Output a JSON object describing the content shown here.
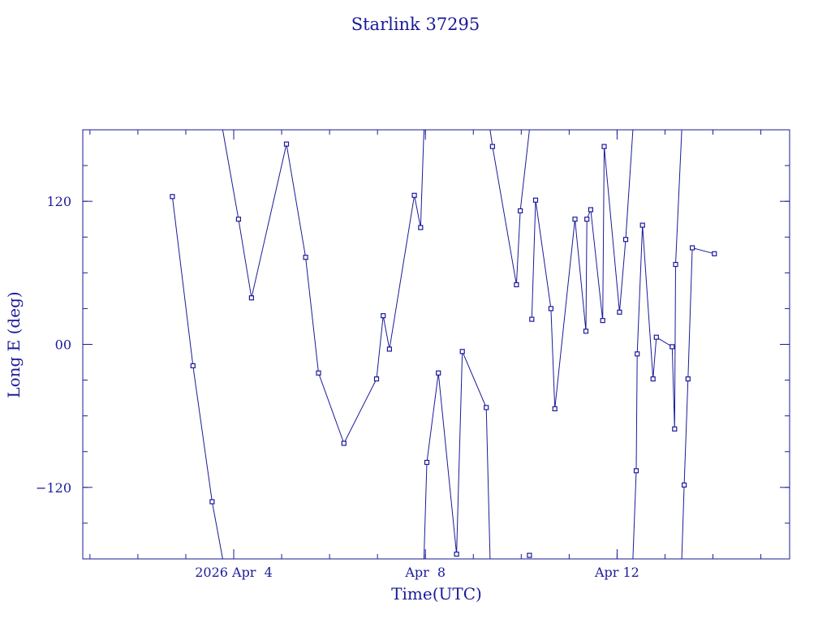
{
  "chart_data": {
    "type": "line",
    "title": "Starlink 37295",
    "xlabel": "Time(UTC)",
    "ylabel": "Long E (deg)",
    "x_unit": "days",
    "xlim": [
      0.0,
      14.75
    ],
    "ylim": [
      -180,
      180
    ],
    "x_ticks": [
      {
        "value": 3.15,
        "label": "2026 Apr  4"
      },
      {
        "value": 7.15,
        "label": "Apr  8"
      },
      {
        "value": 11.15,
        "label": "Apr 12"
      }
    ],
    "y_ticks": [
      {
        "value": 120,
        "label": "120"
      },
      {
        "value": 0,
        "label": "00"
      },
      {
        "value": -120,
        "label": "−120"
      }
    ],
    "grid": false,
    "color": "#1a1a99",
    "series": [
      {
        "points": [
          [
            1.87,
            124
          ],
          [
            2.3,
            -18
          ],
          [
            2.7,
            -132
          ],
          [
            2.92,
            -180
          ]
        ]
      },
      {
        "points": [
          [
            2.92,
            180
          ],
          [
            3.25,
            105
          ],
          [
            3.52,
            39
          ],
          [
            4.25,
            168
          ],
          [
            4.65,
            73
          ],
          [
            4.92,
            -24
          ],
          [
            5.45,
            -83
          ],
          [
            6.13,
            -29
          ],
          [
            6.27,
            24
          ],
          [
            6.4,
            -4
          ],
          [
            6.92,
            125
          ],
          [
            7.05,
            98
          ],
          [
            7.12,
            180
          ]
        ]
      },
      {
        "points": [
          [
            7.12,
            -180
          ],
          [
            7.18,
            -99
          ],
          [
            7.42,
            -24
          ],
          [
            7.8,
            -176
          ],
          [
            7.92,
            -6
          ],
          [
            8.42,
            -53
          ],
          [
            8.5,
            -180
          ]
        ]
      },
      {
        "points": [
          [
            8.5,
            180
          ],
          [
            8.55,
            166
          ],
          [
            9.05,
            50
          ],
          [
            9.13,
            112
          ],
          [
            9.32,
            180
          ]
        ]
      },
      {
        "points": [
          [
            9.32,
            -177
          ]
        ]
      },
      {
        "points": [
          [
            9.37,
            21
          ],
          [
            9.45,
            121
          ],
          [
            9.77,
            30
          ],
          [
            9.85,
            -54
          ],
          [
            10.27,
            105
          ],
          [
            10.5,
            11
          ],
          [
            10.52,
            105
          ],
          [
            10.6,
            113
          ],
          [
            10.85,
            20
          ],
          [
            10.88,
            166
          ],
          [
            11.2,
            27
          ],
          [
            11.33,
            88
          ],
          [
            11.48,
            180
          ]
        ]
      },
      {
        "points": [
          [
            11.48,
            -180
          ],
          [
            11.55,
            -106
          ],
          [
            11.57,
            -8
          ],
          [
            11.68,
            100
          ],
          [
            11.9,
            -29
          ],
          [
            11.97,
            6
          ],
          [
            12.3,
            -2
          ],
          [
            12.35,
            -71
          ],
          [
            12.37,
            67
          ],
          [
            12.5,
            180
          ]
        ]
      },
      {
        "points": [
          [
            12.5,
            -180
          ],
          [
            12.55,
            -118
          ],
          [
            12.63,
            -29
          ],
          [
            12.72,
            81
          ],
          [
            13.18,
            76
          ]
        ]
      }
    ]
  }
}
